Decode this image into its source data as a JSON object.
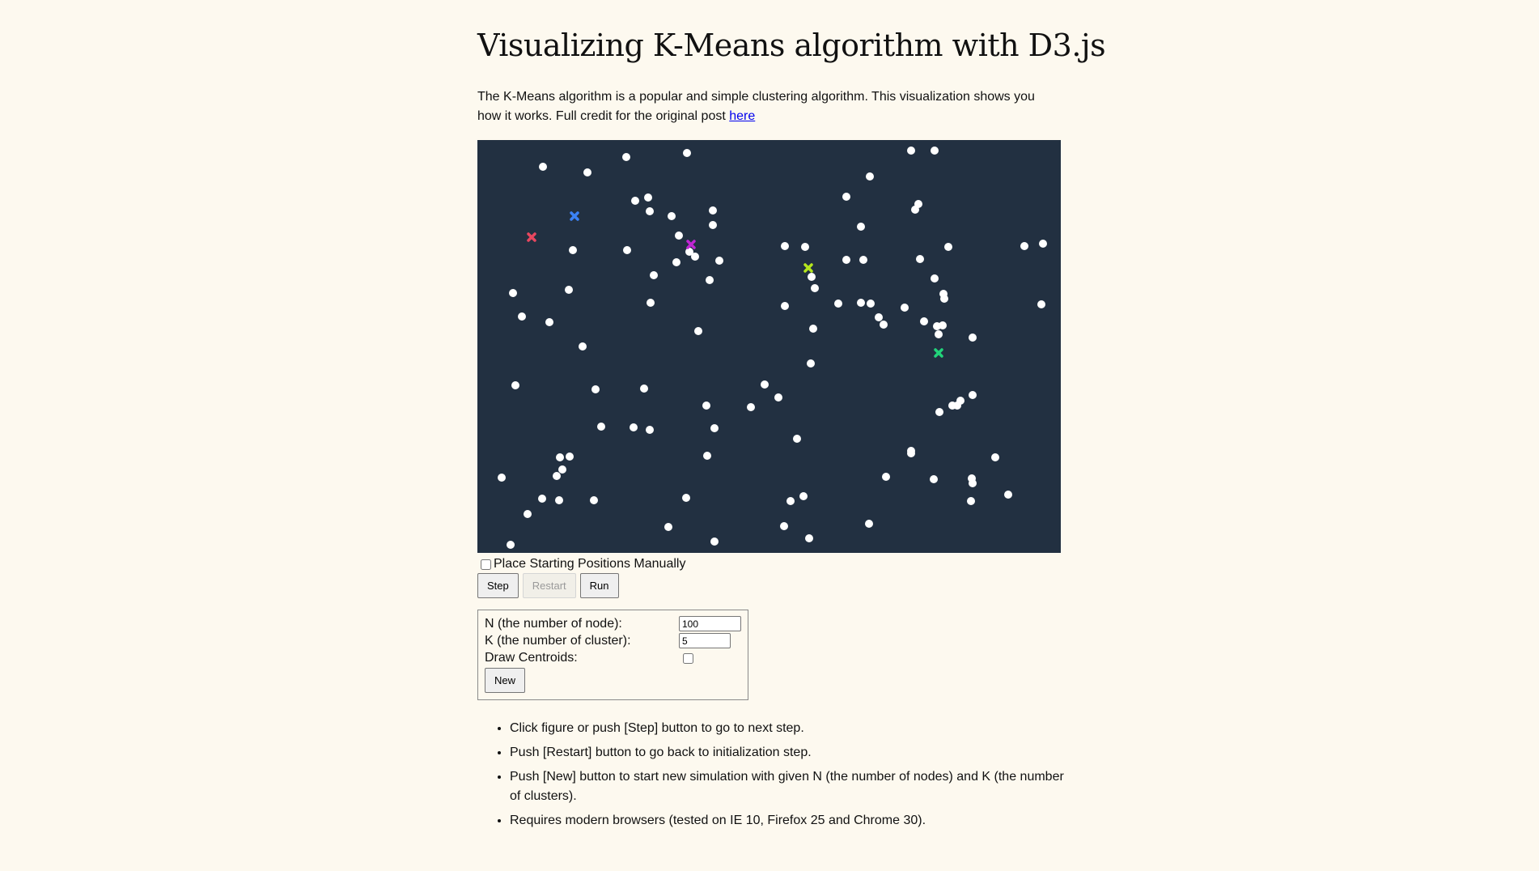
{
  "page": {
    "title": "Visualizing K-Means algorithm with D3.js",
    "intro_text": "The K-Means algorithm is a popular and simple clustering algorithm. This visualization shows you how it works. Full credit for the original post ",
    "intro_link": "here"
  },
  "controls": {
    "manual_label": "Place Starting Positions Manually",
    "step_label": "Step",
    "restart_label": "Restart",
    "run_label": "Run"
  },
  "params": {
    "n_label": "N (the number of node):",
    "n_value": "100",
    "k_label": "K (the number of cluster):",
    "k_value": "5",
    "draw_centroids_label": "Draw Centroids:",
    "new_label": "New"
  },
  "notes": [
    "Click figure or push [Step] button to go to next step.",
    "Push [Restart] button to go back to initialization step.",
    "Push [New] button to start new simulation with given N (the number of nodes) and K (the number of clusters).",
    "Requires modern browsers (tested on IE 10, Firefox 25 and Chrome 30)."
  ],
  "colors": {
    "background": "#fdf9ef",
    "canvas": "#223041",
    "node": "#ffffff",
    "centroids": [
      "#e8475f",
      "#3b82f6",
      "#c026d3",
      "#b5e61d",
      "#22d37a"
    ]
  }
}
